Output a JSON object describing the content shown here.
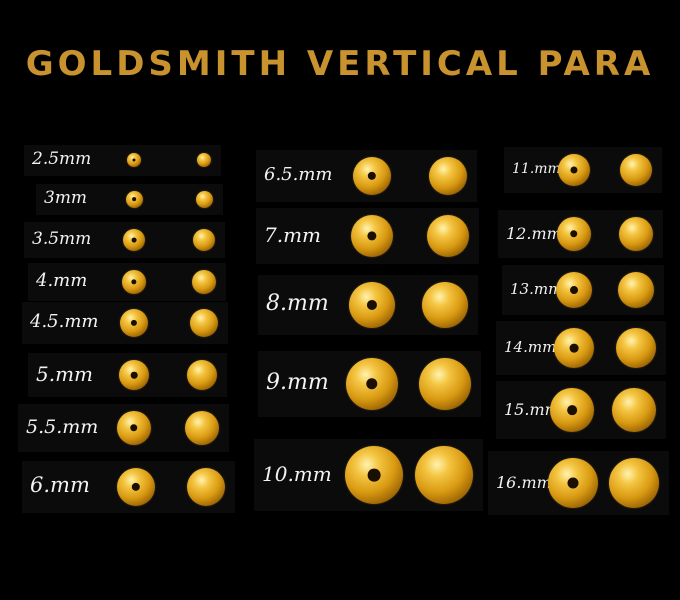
{
  "title": "GOLDSMITH VERTICAL PARA",
  "sizes": [
    {
      "label": "2.5mm"
    },
    {
      "label": "3mm"
    },
    {
      "label": "3.5mm"
    },
    {
      "label": "4.mm"
    },
    {
      "label": "4.5.mm"
    },
    {
      "label": "5.mm"
    },
    {
      "label": "5.5.mm"
    },
    {
      "label": "6.mm"
    },
    {
      "label": "6.5.mm"
    },
    {
      "label": "7.mm"
    },
    {
      "label": "8.mm"
    },
    {
      "label": "9.mm"
    },
    {
      "label": "10.mm"
    },
    {
      "label": "11.mm"
    },
    {
      "label": "12.mm"
    },
    {
      "label": "13.mm"
    },
    {
      "label": "14.mm"
    },
    {
      "label": "15.mm"
    },
    {
      "label": "16.mm"
    }
  ],
  "colors": {
    "title": "#c8922e",
    "label": "#f2f2f2",
    "gold": "#d99a12",
    "background": "#000000"
  }
}
